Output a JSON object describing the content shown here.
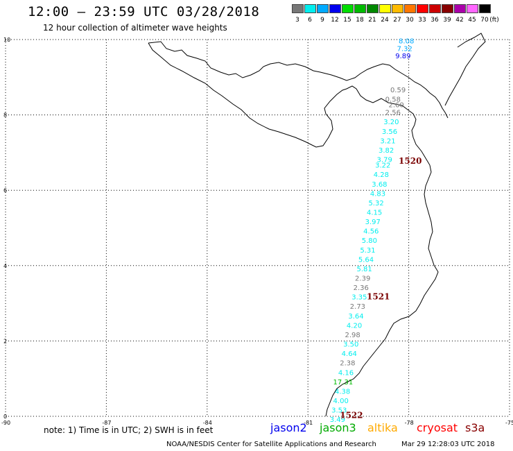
{
  "header": {
    "title": "12:00 – 23:59 UTC 03/28/2018",
    "subtitle": "12 hour collection of altimeter wave heights"
  },
  "legend": {
    "unit": "(ft)",
    "bins": [
      {
        "label": "3",
        "color": "#777777"
      },
      {
        "label": "6",
        "color": "#00eeee"
      },
      {
        "label": "9",
        "color": "#00aaff"
      },
      {
        "label": "12",
        "color": "#0000ee"
      },
      {
        "label": "15",
        "color": "#00dd00"
      },
      {
        "label": "18",
        "color": "#00bb00"
      },
      {
        "label": "21",
        "color": "#008800"
      },
      {
        "label": "24",
        "color": "#ffff00"
      },
      {
        "label": "27",
        "color": "#ffbb00"
      },
      {
        "label": "30",
        "color": "#ff7700"
      },
      {
        "label": "33",
        "color": "#ff0000"
      },
      {
        "label": "36",
        "color": "#cc0000"
      },
      {
        "label": "39",
        "color": "#880000"
      },
      {
        "label": "42",
        "color": "#aa00aa"
      },
      {
        "label": "45",
        "color": "#ff66ff"
      },
      {
        "label": "70",
        "color": "#000000"
      }
    ]
  },
  "axes": {
    "lon_labels": [
      "-90",
      "-87",
      "-84",
      "-81",
      "-78",
      "-75"
    ],
    "lat_labels": [
      "0",
      "2",
      "4",
      "6",
      "8",
      "10"
    ]
  },
  "observations": [
    {
      "v": "8.08",
      "lon": -78.3,
      "lat": 9.9,
      "color": "#00aaff"
    },
    {
      "v": "7.32",
      "lon": -78.35,
      "lat": 9.7,
      "color": "#00aaff"
    },
    {
      "v": "9.89",
      "lon": -78.4,
      "lat": 9.5,
      "color": "#0000ee"
    },
    {
      "v": "0.59",
      "lon": -78.55,
      "lat": 8.6,
      "color": "#777777"
    },
    {
      "v": "0.58",
      "lon": -78.7,
      "lat": 8.35,
      "color": "#777777"
    },
    {
      "v": "2.60",
      "lon": -78.6,
      "lat": 8.2,
      "color": "#777777"
    },
    {
      "v": "2.56",
      "lon": -78.7,
      "lat": 8.0,
      "color": "#777777"
    },
    {
      "v": "3.20",
      "lon": -78.75,
      "lat": 7.75,
      "color": "#00eeee"
    },
    {
      "v": "3.56",
      "lon": -78.8,
      "lat": 7.5,
      "color": "#00eeee"
    },
    {
      "v": "3.21",
      "lon": -78.85,
      "lat": 7.25,
      "color": "#00eeee"
    },
    {
      "v": "3.82",
      "lon": -78.9,
      "lat": 7.0,
      "color": "#00eeee"
    },
    {
      "v": "3.79",
      "lon": -78.95,
      "lat": 6.75,
      "color": "#00eeee"
    },
    {
      "v": "3.22",
      "lon": -79.0,
      "lat": 6.6,
      "color": "#00eeee"
    },
    {
      "v": "4.28",
      "lon": -79.05,
      "lat": 6.35,
      "color": "#00eeee"
    },
    {
      "v": "3.68",
      "lon": -79.1,
      "lat": 6.1,
      "color": "#00eeee"
    },
    {
      "v": "4.83",
      "lon": -79.15,
      "lat": 5.85,
      "color": "#00eeee"
    },
    {
      "v": "5.32",
      "lon": -79.2,
      "lat": 5.6,
      "color": "#00eeee"
    },
    {
      "v": "4.15",
      "lon": -79.25,
      "lat": 5.35,
      "color": "#00eeee"
    },
    {
      "v": "3.97",
      "lon": -79.3,
      "lat": 5.1,
      "color": "#00eeee"
    },
    {
      "v": "4.56",
      "lon": -79.35,
      "lat": 4.85,
      "color": "#00eeee"
    },
    {
      "v": "5.80",
      "lon": -79.4,
      "lat": 4.6,
      "color": "#00eeee"
    },
    {
      "v": "5.31",
      "lon": -79.45,
      "lat": 4.35,
      "color": "#00eeee"
    },
    {
      "v": "5.64",
      "lon": -79.5,
      "lat": 4.1,
      "color": "#00eeee"
    },
    {
      "v": "5.81",
      "lon": -79.55,
      "lat": 3.85,
      "color": "#00eeee"
    },
    {
      "v": "2.39",
      "lon": -79.6,
      "lat": 3.6,
      "color": "#777777"
    },
    {
      "v": "2.36",
      "lon": -79.65,
      "lat": 3.35,
      "color": "#777777"
    },
    {
      "v": "3.35",
      "lon": -79.7,
      "lat": 3.1,
      "color": "#00eeee"
    },
    {
      "v": "2.73",
      "lon": -79.75,
      "lat": 2.85,
      "color": "#777777"
    },
    {
      "v": "3.64",
      "lon": -79.8,
      "lat": 2.6,
      "color": "#00eeee"
    },
    {
      "v": "4.20",
      "lon": -79.85,
      "lat": 2.35,
      "color": "#00eeee"
    },
    {
      "v": "2.98",
      "lon": -79.9,
      "lat": 2.1,
      "color": "#777777"
    },
    {
      "v": "3.50",
      "lon": -79.95,
      "lat": 1.85,
      "color": "#00eeee"
    },
    {
      "v": "4.64",
      "lon": -80.0,
      "lat": 1.6,
      "color": "#00eeee"
    },
    {
      "v": "2.38",
      "lon": -80.05,
      "lat": 1.35,
      "color": "#777777"
    },
    {
      "v": "4.16",
      "lon": -80.1,
      "lat": 1.1,
      "color": "#00eeee"
    },
    {
      "v": "17.31",
      "lon": -80.25,
      "lat": 0.85,
      "color": "#00bb00"
    },
    {
      "v": "4.38",
      "lon": -80.2,
      "lat": 0.6,
      "color": "#00eeee"
    },
    {
      "v": "4.00",
      "lon": -80.25,
      "lat": 0.35,
      "color": "#00eeee"
    },
    {
      "v": "3.53",
      "lon": -80.3,
      "lat": 0.1,
      "color": "#00eeee"
    },
    {
      "v": "3.49",
      "lon": -80.35,
      "lat": -0.15,
      "color": "#00eeee"
    }
  ],
  "orbits": [
    {
      "label": "1520",
      "lon": -78.3,
      "lat": 6.7
    },
    {
      "label": "1521",
      "lon": -79.25,
      "lat": 3.1
    },
    {
      "label": "1522",
      "lon": -80.05,
      "lat": -0.05
    }
  ],
  "footer": {
    "note": "note:  1) Time is in UTC;  2) SWH is in feet",
    "satellites": [
      {
        "name": "jason2",
        "color": "#0000ee"
      },
      {
        "name": "jason3",
        "color": "#00aa00"
      },
      {
        "name": "altika",
        "color": "#ffaa00"
      },
      {
        "name": "cryosat",
        "color": "#ff0000"
      },
      {
        "name": "s3a",
        "color": "#880000"
      }
    ],
    "credit": "NOAA/NESDIS Center for Satellite Applications and Research",
    "timestamp": "Mar 29 12:28:03 UTC 2018"
  }
}
